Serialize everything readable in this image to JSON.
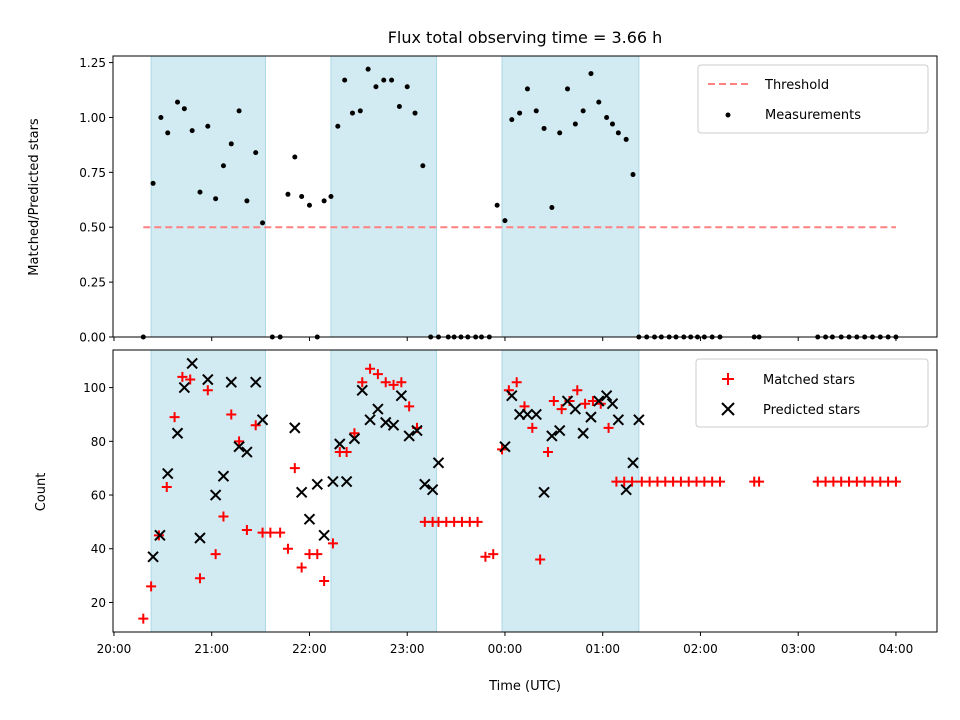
{
  "chart_data": {
    "type": "scatter",
    "title": "Flux total observing time = 3.66 h",
    "xlabel": "Time (UTC)",
    "x_unit": "hours since 20:00 UTC",
    "xlim": [
      19.99,
      28.42
    ],
    "xtick_values": [
      20,
      21,
      22,
      23,
      24,
      25,
      26,
      27,
      28
    ],
    "xtick_labels": [
      "20:00",
      "21:00",
      "22:00",
      "23:00",
      "00:00",
      "01:00",
      "02:00",
      "03:00",
      "04:00"
    ],
    "shaded_intervals": [
      [
        20.38,
        21.55
      ],
      [
        22.22,
        23.3
      ],
      [
        23.97,
        25.37
      ]
    ],
    "shade_color": "#add8e6",
    "panels": [
      {
        "id": "ratio",
        "ylabel": "Matched/Predicted stars",
        "ylim": [
          0,
          1.28
        ],
        "yticks": [
          0.0,
          0.25,
          0.5,
          0.75,
          1.0,
          1.25
        ],
        "ytick_labels": [
          "0.00",
          "0.25",
          "0.50",
          "0.75",
          "1.00",
          "1.25"
        ],
        "legend_placement": "upper right",
        "threshold": {
          "name": "Threshold",
          "value": 0.5,
          "x_range": [
            20.3,
            28.0
          ],
          "color": "#ff8080"
        },
        "series": [
          {
            "name": "Measurements",
            "marker": "dot",
            "color": "#000000",
            "x": [
              20.3,
              20.4,
              20.48,
              20.55,
              20.65,
              20.72,
              20.8,
              20.88,
              20.96,
              21.04,
              21.12,
              21.2,
              21.28,
              21.36,
              21.45,
              21.52,
              21.62,
              21.7,
              21.78,
              21.85,
              21.92,
              22.0,
              22.08,
              22.15,
              22.22,
              22.29,
              22.36,
              22.44,
              22.52,
              22.6,
              22.68,
              22.76,
              22.84,
              22.92,
              23.0,
              23.08,
              23.16,
              23.24,
              23.32,
              23.42,
              23.48,
              23.55,
              23.62,
              23.7,
              23.76,
              23.84,
              23.92,
              24.0,
              24.07,
              24.15,
              24.23,
              24.32,
              24.4,
              24.48,
              24.56,
              24.64,
              24.72,
              24.8,
              24.88,
              24.96,
              25.04,
              25.1,
              25.16,
              25.24,
              25.31,
              25.37,
              25.45,
              25.53,
              25.6,
              25.68,
              25.75,
              25.83,
              25.9,
              25.97,
              26.04,
              26.12,
              26.2,
              26.55,
              26.6,
              27.2,
              27.28,
              27.35,
              27.44,
              27.52,
              27.6,
              27.68,
              27.76,
              27.84,
              27.92,
              28.0
            ],
            "y": [
              0.0,
              0.7,
              1.0,
              0.93,
              1.07,
              1.04,
              0.94,
              0.66,
              0.96,
              0.63,
              0.78,
              0.88,
              1.03,
              0.62,
              0.84,
              0.52,
              0.0,
              0.0,
              0.65,
              0.82,
              0.64,
              0.6,
              0.0,
              0.62,
              0.64,
              0.96,
              1.17,
              1.02,
              1.03,
              1.22,
              1.14,
              1.17,
              1.17,
              1.05,
              1.14,
              1.02,
              0.78,
              0.0,
              0.0,
              0.0,
              0.0,
              0.0,
              0.0,
              0.0,
              0.0,
              0.0,
              0.6,
              0.53,
              0.99,
              1.02,
              1.13,
              1.03,
              0.95,
              0.59,
              0.93,
              1.13,
              0.97,
              1.03,
              1.2,
              1.07,
              1.0,
              0.97,
              0.93,
              0.9,
              0.74,
              0.0,
              0.0,
              0.0,
              0.0,
              0.0,
              0.0,
              0.0,
              0.0,
              0.0,
              0.0,
              0.0,
              0.0,
              0.0,
              0.0,
              0.0,
              0.0,
              0.0,
              0.0,
              0.0,
              0.0,
              0.0,
              0.0,
              0.0,
              0.0,
              0.0
            ]
          }
        ]
      },
      {
        "id": "count",
        "ylabel": "Count",
        "ylim": [
          9,
          114
        ],
        "yticks": [
          20,
          40,
          60,
          80,
          100
        ],
        "ytick_labels": [
          "20",
          "40",
          "60",
          "80",
          "100"
        ],
        "legend_placement": "upper right",
        "series": [
          {
            "name": "Matched stars",
            "marker": "plus",
            "color": "#ff0000",
            "x": [
              20.3,
              20.38,
              20.46,
              20.54,
              20.62,
              20.7,
              20.78,
              20.88,
              20.96,
              21.04,
              21.12,
              21.2,
              21.28,
              21.36,
              21.45,
              21.52,
              21.6,
              21.7,
              21.78,
              21.85,
              21.92,
              22.0,
              22.08,
              22.15,
              22.24,
              22.31,
              22.38,
              22.46,
              22.54,
              22.62,
              22.7,
              22.78,
              22.86,
              22.94,
              23.02,
              23.1,
              23.18,
              23.26,
              23.32,
              23.4,
              23.48,
              23.56,
              23.64,
              23.72,
              23.8,
              23.88,
              23.97,
              24.04,
              24.12,
              24.2,
              24.28,
              24.36,
              24.44,
              24.5,
              24.58,
              24.66,
              24.74,
              24.82,
              24.9,
              24.98,
              25.06,
              25.14,
              25.22,
              25.3,
              25.4,
              25.48,
              25.56,
              25.64,
              25.72,
              25.8,
              25.88,
              25.96,
              26.04,
              26.12,
              26.2,
              26.55,
              26.6,
              27.2,
              27.28,
              27.36,
              27.44,
              27.52,
              27.6,
              27.68,
              27.76,
              27.84,
              27.92,
              28.0
            ],
            "y": [
              14,
              26,
              45,
              63,
              89,
              104,
              103,
              29,
              99,
              38,
              52,
              90,
              80,
              47,
              86,
              46,
              46,
              46,
              40,
              70,
              33,
              38,
              38,
              28,
              42,
              76,
              76,
              83,
              102,
              107,
              105,
              102,
              101,
              102,
              93,
              85,
              50,
              50,
              50,
              50,
              50,
              50,
              50,
              50,
              37,
              38,
              77,
              99,
              102,
              93,
              85,
              36,
              76,
              95,
              92,
              95,
              99,
              94,
              95,
              94,
              85,
              65,
              65,
              65,
              65,
              65,
              65,
              65,
              65,
              65,
              65,
              65,
              65,
              65,
              65,
              65,
              65,
              65,
              65,
              65,
              65,
              65,
              65,
              65,
              65,
              65,
              65,
              65
            ]
          },
          {
            "name": "Predicted stars",
            "marker": "x",
            "color": "#000000",
            "x": [
              20.4,
              20.47,
              20.55,
              20.65,
              20.72,
              20.8,
              20.88,
              20.96,
              21.04,
              21.12,
              21.2,
              21.28,
              21.36,
              21.45,
              21.52,
              21.85,
              21.92,
              22.0,
              22.08,
              22.15,
              22.24,
              22.31,
              22.38,
              22.46,
              22.54,
              22.62,
              22.7,
              22.78,
              22.86,
              22.94,
              23.02,
              23.1,
              23.18,
              23.26,
              23.32,
              24.0,
              24.07,
              24.15,
              24.23,
              24.32,
              24.4,
              24.48,
              24.56,
              24.64,
              24.72,
              24.8,
              24.88,
              24.96,
              25.04,
              25.1,
              25.16,
              25.24,
              25.31,
              25.37
            ],
            "y": [
              37,
              45,
              68,
              83,
              100,
              109,
              44,
              103,
              60,
              67,
              102,
              78,
              76,
              102,
              88,
              85,
              61,
              51,
              64,
              45,
              65,
              79,
              65,
              81,
              99,
              88,
              92,
              87,
              86,
              97,
              82,
              84,
              64,
              62,
              72,
              78,
              97,
              90,
              90,
              90,
              61,
              82,
              84,
              95,
              92,
              83,
              89,
              95,
              97,
              94,
              88,
              62,
              72,
              88
            ]
          }
        ]
      }
    ]
  }
}
